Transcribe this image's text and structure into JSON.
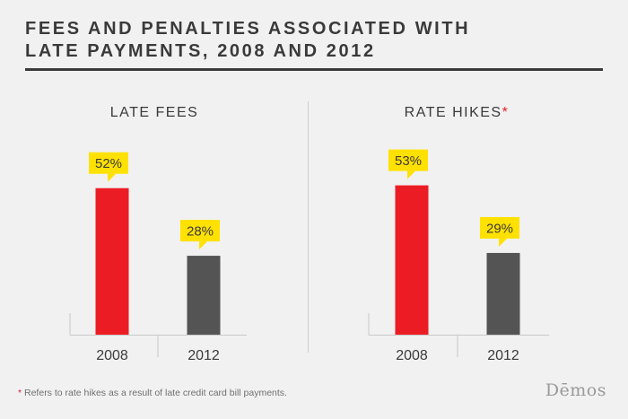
{
  "title": "FEES AND PENALTIES ASSOCIATED WITH LATE PAYMENTS, 2008 AND 2012",
  "footnote": {
    "star": "*",
    "text": " Refers to rate hikes as a result of late credit card bill payments."
  },
  "logo": "Dēmos",
  "colors": {
    "bar_2008": "#ec1c24",
    "bar_2012": "#545454",
    "callout": "#ffe100"
  },
  "chart_data": [
    {
      "type": "bar",
      "title": "LATE FEES",
      "title_star": "",
      "categories": [
        "2008",
        "2012"
      ],
      "values": [
        52,
        28
      ],
      "data_labels": [
        "52%",
        "28%"
      ],
      "ylim": [
        0,
        100
      ]
    },
    {
      "type": "bar",
      "title": "RATE HIKES",
      "title_star": "*",
      "categories": [
        "2008",
        "2012"
      ],
      "values": [
        53,
        29
      ],
      "data_labels": [
        "53%",
        "29%"
      ],
      "ylim": [
        0,
        100
      ]
    }
  ]
}
